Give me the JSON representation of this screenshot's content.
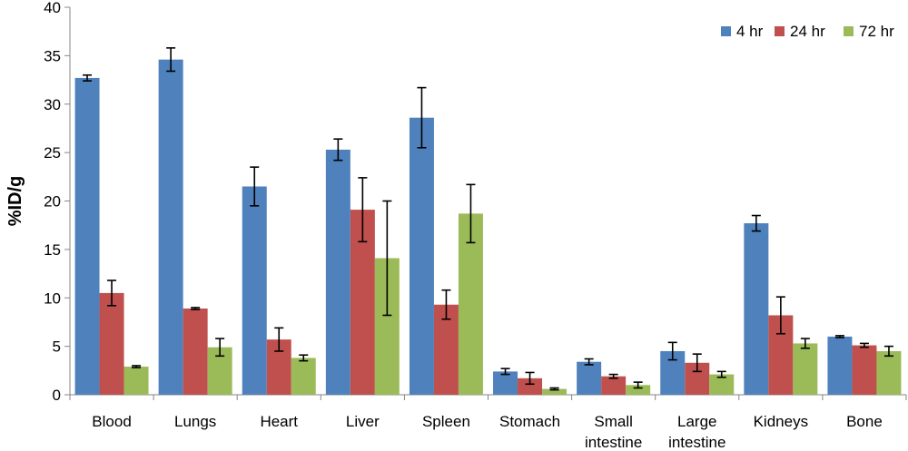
{
  "chart_data": {
    "type": "bar",
    "title": "",
    "xlabel": "",
    "ylabel": "%ID/g",
    "ylim": [
      0,
      40
    ],
    "yticks": [
      0,
      5,
      10,
      15,
      20,
      25,
      30,
      35,
      40
    ],
    "grid": false,
    "legend_position": "top-right",
    "error_bars": true,
    "categories": [
      [
        "Blood"
      ],
      [
        "Lungs"
      ],
      [
        "Heart"
      ],
      [
        "Liver"
      ],
      [
        "Spleen"
      ],
      [
        "Stomach"
      ],
      [
        "Small",
        "intestine"
      ],
      [
        "Large",
        "intestine"
      ],
      [
        "Kidneys"
      ],
      [
        "Bone"
      ]
    ],
    "series": [
      {
        "name": "4 hr",
        "color": "#4F81BD",
        "values": [
          32.7,
          34.6,
          21.5,
          25.3,
          28.6,
          2.4,
          3.4,
          4.5,
          17.7,
          6.0
        ],
        "errors": [
          0.3,
          1.2,
          2.0,
          1.1,
          3.1,
          0.3,
          0.3,
          0.9,
          0.8,
          0.1
        ]
      },
      {
        "name": "24 hr",
        "color": "#C0504D",
        "values": [
          10.5,
          8.9,
          5.7,
          19.1,
          9.3,
          1.7,
          1.9,
          3.3,
          8.2,
          5.1
        ],
        "errors": [
          1.3,
          0.1,
          1.2,
          3.3,
          1.5,
          0.6,
          0.2,
          0.9,
          1.9,
          0.2
        ]
      },
      {
        "name": "72 hr",
        "color": "#9BBB59",
        "values": [
          2.9,
          4.9,
          3.8,
          14.1,
          18.7,
          0.6,
          1.0,
          2.1,
          5.3,
          4.5
        ],
        "errors": [
          0.1,
          0.9,
          0.3,
          5.9,
          3.0,
          0.1,
          0.3,
          0.3,
          0.5,
          0.5
        ]
      }
    ]
  }
}
